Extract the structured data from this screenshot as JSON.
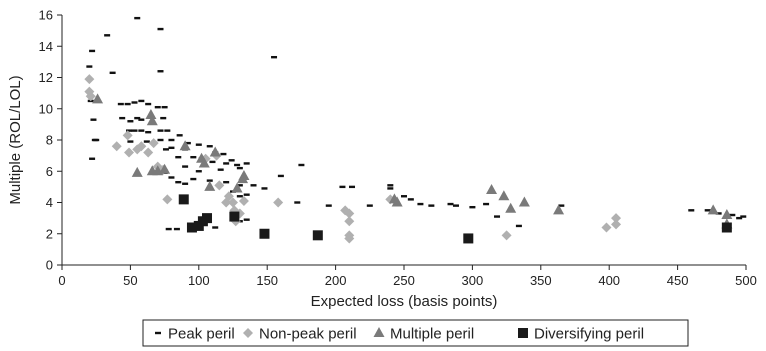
{
  "chart_data": {
    "type": "scatter",
    "xlabel": "Expected loss (basis points)",
    "ylabel": "Multiple (ROL/LOL)",
    "xlim": [
      0,
      500
    ],
    "ylim": [
      0,
      16
    ],
    "x_ticks": [
      "0",
      "50",
      "100",
      "150",
      "200",
      "250",
      "300",
      "350",
      "400",
      "450",
      "500"
    ],
    "y_ticks": [
      "0",
      "2",
      "4",
      "6",
      "8",
      "10",
      "12",
      "14",
      "16"
    ],
    "grid": false,
    "legend_position": "bottom",
    "series": [
      {
        "name": "Peak peril",
        "marker": "dash",
        "color": "#111111",
        "points": [
          [
            20,
            12.7
          ],
          [
            22,
            13.7
          ],
          [
            21,
            10.5
          ],
          [
            23,
            9.3
          ],
          [
            24,
            8.0
          ],
          [
            22,
            6.8
          ],
          [
            25,
            8.0
          ],
          [
            33,
            14.7
          ],
          [
            37,
            12.3
          ],
          [
            55,
            15.8
          ],
          [
            72,
            15.1
          ],
          [
            43,
            10.3
          ],
          [
            48,
            10.3
          ],
          [
            53,
            10.4
          ],
          [
            58,
            10.5
          ],
          [
            63,
            10.3
          ],
          [
            70,
            10.1
          ],
          [
            75,
            10.1
          ],
          [
            72,
            12.4
          ],
          [
            44,
            9.4
          ],
          [
            50,
            9.2
          ],
          [
            55,
            9.4
          ],
          [
            58,
            9.3
          ],
          [
            66,
            9.1
          ],
          [
            74,
            9.4
          ],
          [
            49,
            8.6
          ],
          [
            53,
            8.6
          ],
          [
            58,
            8.6
          ],
          [
            63,
            8.5
          ],
          [
            72,
            8.6
          ],
          [
            77,
            8.6
          ],
          [
            50,
            7.9
          ],
          [
            62,
            7.9
          ],
          [
            72,
            8.0
          ],
          [
            80,
            8.0
          ],
          [
            86,
            8.3
          ],
          [
            92,
            7.8
          ],
          [
            90,
            7.4
          ],
          [
            100,
            7.7
          ],
          [
            104,
            6.9
          ],
          [
            108,
            7.6
          ],
          [
            112,
            7.2
          ],
          [
            118,
            7.1
          ],
          [
            124,
            6.7
          ],
          [
            76,
            7.4
          ],
          [
            80,
            7.5
          ],
          [
            85,
            6.9
          ],
          [
            96,
            6.9
          ],
          [
            102,
            6.8
          ],
          [
            110,
            6.6
          ],
          [
            120,
            6.5
          ],
          [
            128,
            6.4
          ],
          [
            135,
            6.5
          ],
          [
            90,
            6.3
          ],
          [
            100,
            6.0
          ],
          [
            116,
            6.1
          ],
          [
            130,
            6.2
          ],
          [
            75,
            5.9
          ],
          [
            80,
            5.6
          ],
          [
            85,
            5.3
          ],
          [
            90,
            5.2
          ],
          [
            96,
            5.5
          ],
          [
            108,
            5.4
          ],
          [
            120,
            5.3
          ],
          [
            130,
            5.1
          ],
          [
            140,
            5.1
          ],
          [
            125,
            4.7
          ],
          [
            130,
            4.4
          ],
          [
            135,
            4.5
          ],
          [
            148,
            4.9
          ],
          [
            160,
            5.7
          ],
          [
            175,
            6.4
          ],
          [
            155,
            13.3
          ],
          [
            172,
            4.0
          ],
          [
            205,
            5.0
          ],
          [
            212,
            5.0
          ],
          [
            195,
            3.8
          ],
          [
            225,
            3.8
          ],
          [
            210,
            3.3
          ],
          [
            240,
            5.1
          ],
          [
            240,
            4.9
          ],
          [
            250,
            4.4
          ],
          [
            255,
            4.2
          ],
          [
            262,
            3.9
          ],
          [
            270,
            3.8
          ],
          [
            284,
            3.9
          ],
          [
            288,
            3.8
          ],
          [
            300,
            3.7
          ],
          [
            310,
            3.9
          ],
          [
            318,
            3.1
          ],
          [
            334,
            2.5
          ],
          [
            365,
            3.8
          ],
          [
            460,
            3.5
          ],
          [
            472,
            3.5
          ],
          [
            480,
            3.3
          ],
          [
            490,
            3.2
          ],
          [
            495,
            3.0
          ],
          [
            498,
            3.1
          ],
          [
            78,
            2.3
          ],
          [
            84,
            2.3
          ],
          [
            112,
            2.4
          ],
          [
            130,
            2.8
          ],
          [
            135,
            2.9
          ]
        ]
      },
      {
        "name": "Non-peak peril",
        "marker": "diamond",
        "color": "#b0b0b0",
        "points": [
          [
            20,
            11.9
          ],
          [
            20,
            11.1
          ],
          [
            21,
            10.8
          ],
          [
            40,
            7.6
          ],
          [
            48,
            8.3
          ],
          [
            49,
            7.2
          ],
          [
            55,
            7.4
          ],
          [
            58,
            7.6
          ],
          [
            63,
            7.2
          ],
          [
            67,
            7.8
          ],
          [
            70,
            6.3
          ],
          [
            74,
            6.1
          ],
          [
            77,
            4.2
          ],
          [
            105,
            6.8
          ],
          [
            113,
            7.0
          ],
          [
            115,
            5.1
          ],
          [
            120,
            4.0
          ],
          [
            122,
            4.4
          ],
          [
            125,
            4.0
          ],
          [
            126,
            3.5
          ],
          [
            127,
            2.8
          ],
          [
            130,
            3.3
          ],
          [
            133,
            4.1
          ],
          [
            158,
            4.0
          ],
          [
            207,
            3.5
          ],
          [
            210,
            3.3
          ],
          [
            210,
            2.8
          ],
          [
            210,
            1.9
          ],
          [
            210,
            1.7
          ],
          [
            240,
            4.2
          ],
          [
            325,
            1.9
          ],
          [
            398,
            2.4
          ],
          [
            405,
            3.0
          ],
          [
            405,
            2.6
          ]
        ]
      },
      {
        "name": "Multiple peril",
        "marker": "triangle",
        "color": "#7a7a7a",
        "points": [
          [
            26,
            10.6
          ],
          [
            55,
            5.9
          ],
          [
            65,
            9.6
          ],
          [
            66,
            9.2
          ],
          [
            66,
            6.0
          ],
          [
            70,
            6.0
          ],
          [
            75,
            6.1
          ],
          [
            90,
            7.6
          ],
          [
            102,
            6.8
          ],
          [
            104,
            6.5
          ],
          [
            108,
            5.0
          ],
          [
            112,
            7.2
          ],
          [
            128,
            4.9
          ],
          [
            132,
            5.5
          ],
          [
            133,
            5.7
          ],
          [
            243,
            4.2
          ],
          [
            245,
            4.0
          ],
          [
            314,
            4.8
          ],
          [
            323,
            4.4
          ],
          [
            328,
            3.6
          ],
          [
            338,
            4.0
          ],
          [
            363,
            3.5
          ],
          [
            476,
            3.5
          ],
          [
            486,
            3.2
          ],
          [
            486,
            2.6
          ]
        ]
      },
      {
        "name": "Diversifying peril",
        "marker": "square",
        "color": "#1a1a1a",
        "points": [
          [
            89,
            4.2
          ],
          [
            95,
            2.4
          ],
          [
            100,
            2.5
          ],
          [
            103,
            2.8
          ],
          [
            106,
            3.0
          ],
          [
            126,
            3.1
          ],
          [
            148,
            2.0
          ],
          [
            187,
            1.9
          ],
          [
            297,
            1.7
          ],
          [
            486,
            2.4
          ]
        ]
      }
    ]
  }
}
